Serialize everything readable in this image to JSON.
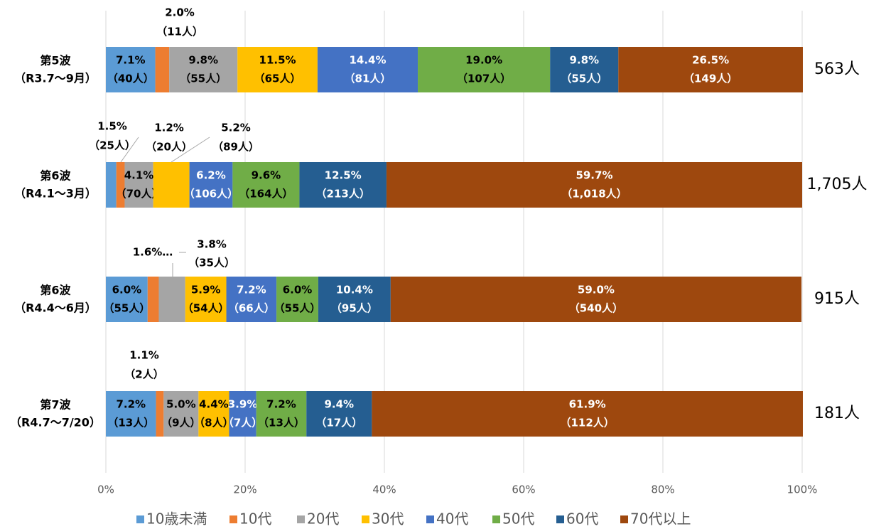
{
  "chart_data": {
    "type": "stacked_bar_horizontal",
    "categories": [
      [
        "第5波",
        "（R3.7～9月）"
      ],
      [
        "第6波",
        "（R4.1～3月）"
      ],
      [
        "第6波",
        "（R4.4～6月）"
      ],
      [
        "第7波",
        "（R4.7～7/20）"
      ]
    ],
    "totals": [
      "563人",
      "1,705人",
      "915人",
      "181人"
    ],
    "xlim": [
      0,
      100
    ],
    "xticks": [
      {
        "value": 0,
        "label": "0%"
      },
      {
        "value": 20,
        "label": "20%"
      },
      {
        "value": 40,
        "label": "40%"
      },
      {
        "value": 60,
        "label": "60%"
      },
      {
        "value": 80,
        "label": "80%"
      },
      {
        "value": 100,
        "label": "100%"
      }
    ],
    "grid": true,
    "legend": "bottom",
    "series": [
      {
        "name": "10歳未満",
        "color": "#5B9BD5",
        "values": [
          7.1,
          1.5,
          6.0,
          7.2
        ],
        "value_labels": [
          "7.1%",
          "1.5%",
          "6.0%",
          "7.2%"
        ],
        "count_labels": [
          "（40人）",
          "（25人）",
          "（55人）",
          "（13人）"
        ]
      },
      {
        "name": "10代",
        "color": "#ED7D31",
        "values": [
          2.0,
          1.2,
          1.6,
          1.1
        ],
        "value_labels": [
          "2.0%",
          "1.2%",
          "1.6%…",
          "1.1%"
        ],
        "count_labels": [
          "（11人）",
          "（20人）",
          null,
          "（2人）"
        ]
      },
      {
        "name": "20代",
        "color": "#A5A5A5",
        "values": [
          9.8,
          4.1,
          3.8,
          5.0
        ],
        "value_labels": [
          "9.8%",
          "4.1%",
          "3.8%",
          "5.0%"
        ],
        "count_labels": [
          "（55人）",
          "（70人）",
          "（35人）",
          "（9人）"
        ]
      },
      {
        "name": "30代",
        "color": "#FFC000",
        "values": [
          11.5,
          5.2,
          5.9,
          4.4
        ],
        "value_labels": [
          "11.5%",
          "5.2%",
          "5.9%",
          "4.4%"
        ],
        "count_labels": [
          "（65人）",
          "（89人）",
          "（54人）",
          "（8人）"
        ]
      },
      {
        "name": "40代",
        "color": "#4472C4",
        "values": [
          14.4,
          6.2,
          7.2,
          3.9
        ],
        "value_labels": [
          "14.4%",
          "6.2%",
          "7.2%",
          "3.9%"
        ],
        "count_labels": [
          "（81人）",
          "（106人）",
          "（66人）",
          "（7人）"
        ]
      },
      {
        "name": "50代",
        "color": "#70AD47",
        "values": [
          19.0,
          9.6,
          6.0,
          7.2
        ],
        "value_labels": [
          "19.0%",
          "9.6%",
          "6.0%",
          "7.2%"
        ],
        "count_labels": [
          "（107人）",
          "（164人）",
          "（55人）",
          "（13人）"
        ]
      },
      {
        "name": "60代",
        "color": "#255E91",
        "values": [
          9.8,
          12.5,
          10.4,
          9.4
        ],
        "value_labels": [
          "9.8%",
          "12.5%",
          "10.4%",
          "9.4%"
        ],
        "count_labels": [
          "（55人）",
          "（213人）",
          "（95人）",
          "（17人）"
        ]
      },
      {
        "name": "70代以上",
        "color": "#9E480E",
        "values": [
          26.5,
          59.7,
          59.0,
          61.9
        ],
        "value_labels": [
          "26.5%",
          "59.7%",
          "59.0%",
          "61.9%"
        ],
        "count_labels": [
          "（149人）",
          "（1,018人）",
          "（540人）",
          "（112人）"
        ]
      }
    ]
  }
}
